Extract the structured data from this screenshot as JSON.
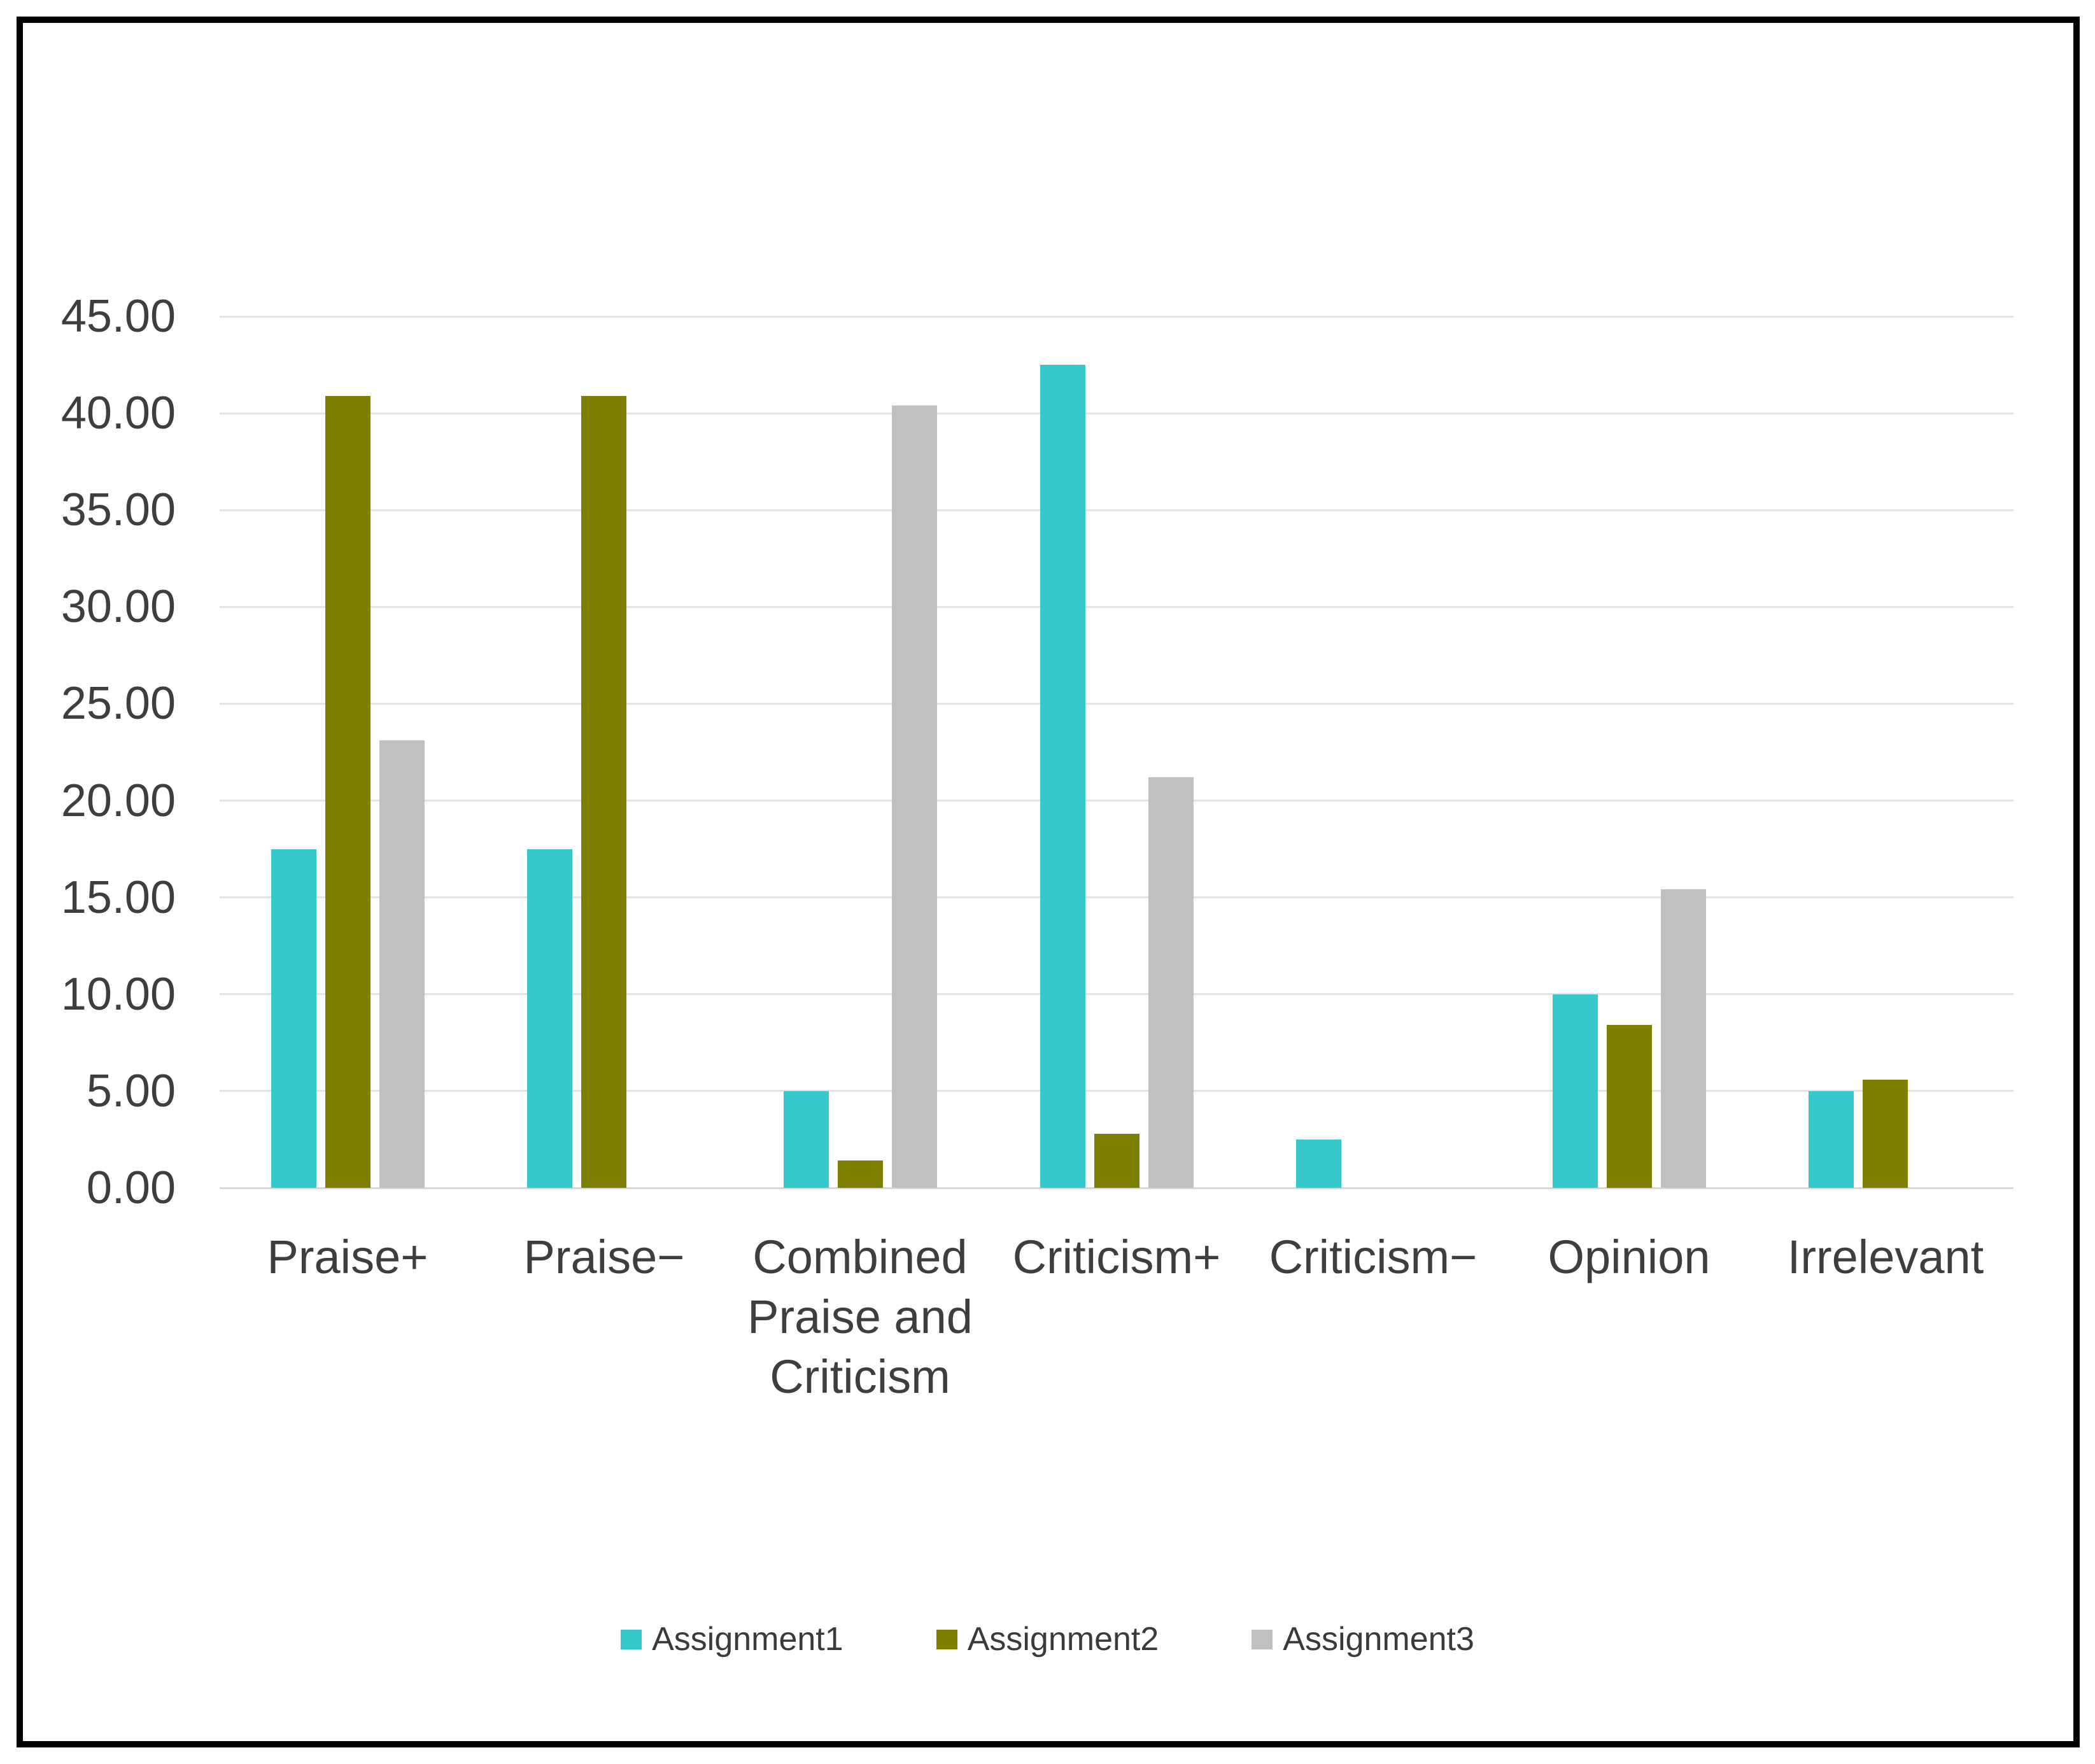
{
  "figure": {
    "background_color": "#FFFFFF",
    "border_color": "#000000",
    "text_color": "#3E3E3E",
    "gridline_color": "#E3E3E3",
    "axis_line_color": "#D9D9D9"
  },
  "chart_data": {
    "type": "bar",
    "title": "",
    "xlabel": "",
    "ylabel": "",
    "categories": [
      "Praise+",
      "Praise−",
      "Combined Praise and Criticism",
      "Criticism+",
      "Criticism−",
      "Opinion",
      "Irrelevant"
    ],
    "series": [
      {
        "name": "Assignment1",
        "color": "#35C9CB",
        "values": [
          17.5,
          17.5,
          5.0,
          42.5,
          2.5,
          10.0,
          5.0
        ]
      },
      {
        "name": "Assignment2",
        "color": "#7E7E00",
        "values": [
          40.9,
          40.9,
          1.4,
          2.8,
          0,
          8.4,
          5.6
        ]
      },
      {
        "name": "Assignment3",
        "color": "#C0C0C0",
        "values": [
          23.1,
          0,
          40.4,
          21.2,
          0,
          15.4,
          0
        ]
      }
    ],
    "ylim": [
      0,
      45
    ],
    "y_step": 5,
    "y_tick_labels": [
      "0.00",
      "5.00",
      "10.00",
      "15.00",
      "20.00",
      "25.00",
      "30.00",
      "35.00",
      "40.00",
      "45.00"
    ],
    "grid": true,
    "legend_position": "bottom"
  }
}
